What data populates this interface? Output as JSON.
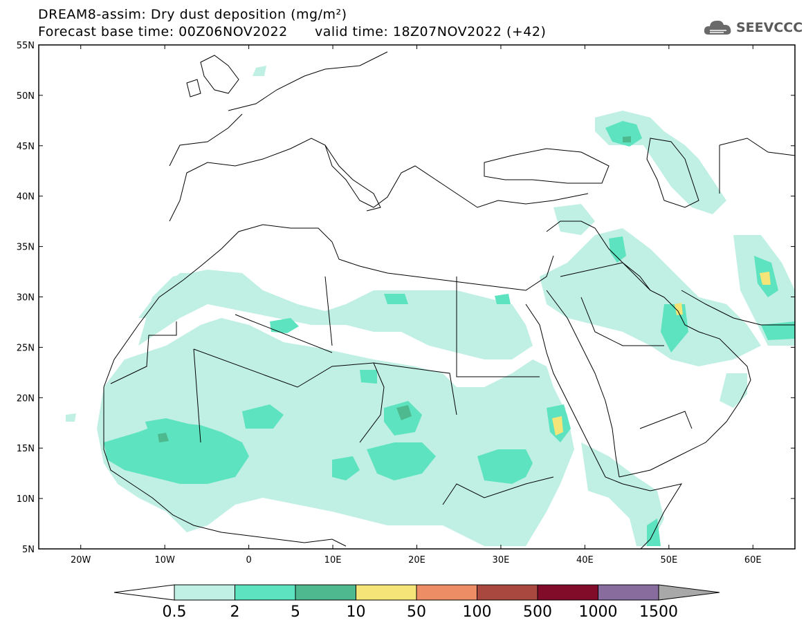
{
  "title": {
    "line1": "DREAM8-assim: Dry dust deposition (mg/m²)",
    "line2_left": "Forecast base time: 00Z06NOV2022",
    "line2_right": "valid time: 18Z07NOV2022 (+42)"
  },
  "logo": {
    "text": "SEEVCCC",
    "icon": "cloud-logo-icon"
  },
  "map": {
    "lat_range": [
      5,
      55
    ],
    "lon_range": [
      -25,
      65
    ],
    "lat_labels": [
      "55N",
      "50N",
      "45N",
      "40N",
      "35N",
      "30N",
      "25N",
      "20N",
      "15N",
      "10N",
      "5N"
    ],
    "lat_values": [
      55,
      50,
      45,
      40,
      35,
      30,
      25,
      20,
      15,
      10,
      5
    ],
    "lon_labels": [
      "20W",
      "10W",
      "0",
      "10E",
      "20E",
      "30E",
      "40E",
      "50E",
      "60E"
    ],
    "lon_values": [
      -20,
      -10,
      0,
      10,
      20,
      30,
      40,
      50,
      60
    ]
  },
  "colorbar": {
    "labels": [
      "0.5",
      "2",
      "5",
      "10",
      "50",
      "100",
      "500",
      "1000",
      "1500"
    ],
    "colors": [
      "#c0efe4",
      "#5de3c0",
      "#4eb88e",
      "#f5e477",
      "#ec8d66",
      "#a9483f",
      "#800c2a",
      "#896c9e",
      "#a8a8a8"
    ],
    "under_color": "#ffffff"
  }
}
